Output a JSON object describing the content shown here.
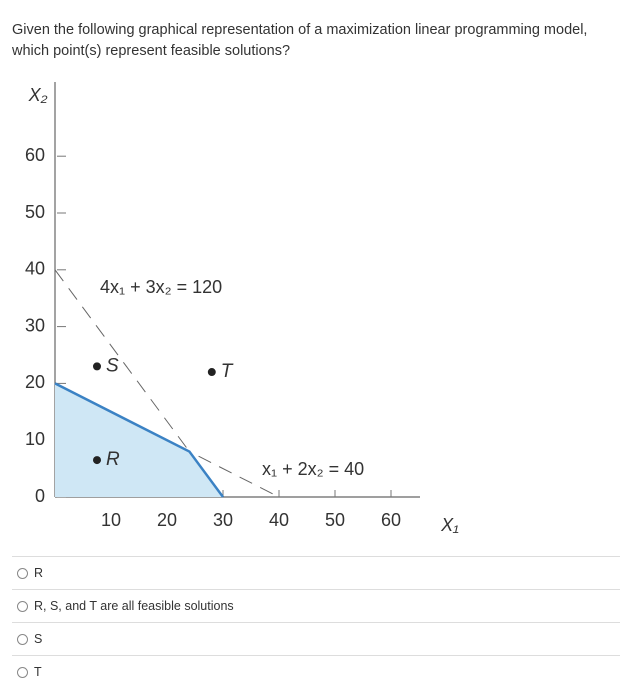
{
  "question": "Given the following graphical representation of a maximization linear programming model, which point(s) represent feasible solutions?",
  "chart_data": {
    "type": "lp-graph",
    "xlabel": "X₁",
    "ylabel": "X₂",
    "xlim": [
      0,
      70
    ],
    "ylim": [
      0,
      65
    ],
    "xticks": [
      10,
      20,
      30,
      40,
      50,
      60
    ],
    "yticks": [
      0,
      10,
      20,
      30,
      40,
      50,
      60
    ],
    "constraints": [
      {
        "label": "4x₁ + 3x₂ = 120",
        "x_intercept": 30,
        "y_intercept": 40
      },
      {
        "label": "x₁ + 2x₂ = 40",
        "x_intercept": 40,
        "y_intercept": 20
      }
    ],
    "points": [
      {
        "label": "S",
        "x": 7.5,
        "y": 23
      },
      {
        "label": "R",
        "x": 7.5,
        "y": 6.5
      },
      {
        "label": "T",
        "x": 28,
        "y": 22
      }
    ],
    "region_color": "#cfe7f5",
    "boundary_color": "#3b82c4"
  },
  "options": [
    "R",
    "R, S, and T are all feasible solutions",
    "S",
    "T"
  ]
}
